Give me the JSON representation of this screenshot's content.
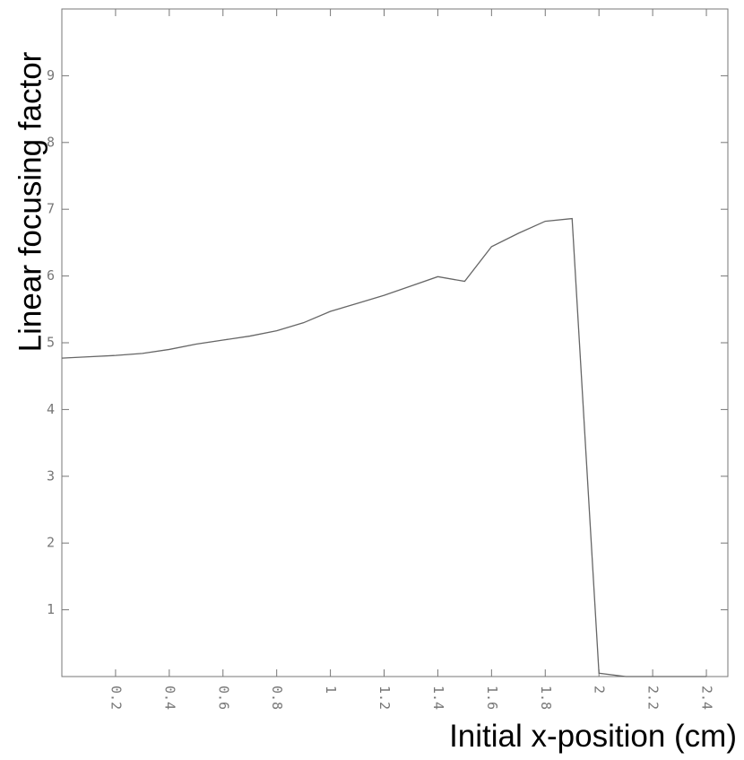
{
  "chart_data": {
    "type": "line",
    "x_label": "Initial x-position (cm)",
    "y_label": "Linear focusing factor",
    "x": [
      0,
      0.1,
      0.2,
      0.3,
      0.4,
      0.5,
      0.6,
      0.7,
      0.8,
      0.9,
      1.0,
      1.1,
      1.2,
      1.3,
      1.4,
      1.5,
      1.6,
      1.7,
      1.8,
      1.9,
      2.0,
      2.1,
      2.2,
      2.3,
      2.4
    ],
    "series": [
      {
        "color": "#666666",
        "values": [
          4.77,
          4.79,
          4.81,
          4.84,
          4.9,
          4.98,
          5.04,
          5.1,
          5.18,
          5.3,
          5.47,
          5.59,
          5.71,
          5.85,
          5.99,
          5.92,
          6.44,
          6.64,
          6.82,
          6.86,
          0.05,
          0.0,
          0.0,
          0.0,
          0.0
        ]
      }
    ],
    "xlim": [
      0,
      2.48
    ],
    "ylim": [
      0,
      10
    ],
    "xticks": [
      0.2,
      0.4,
      0.6,
      0.8,
      1,
      1.2,
      1.4,
      1.6,
      1.8,
      2,
      2.2,
      2.4
    ],
    "yticks": [
      1,
      2,
      3,
      4,
      5,
      6,
      7,
      8,
      9
    ]
  }
}
